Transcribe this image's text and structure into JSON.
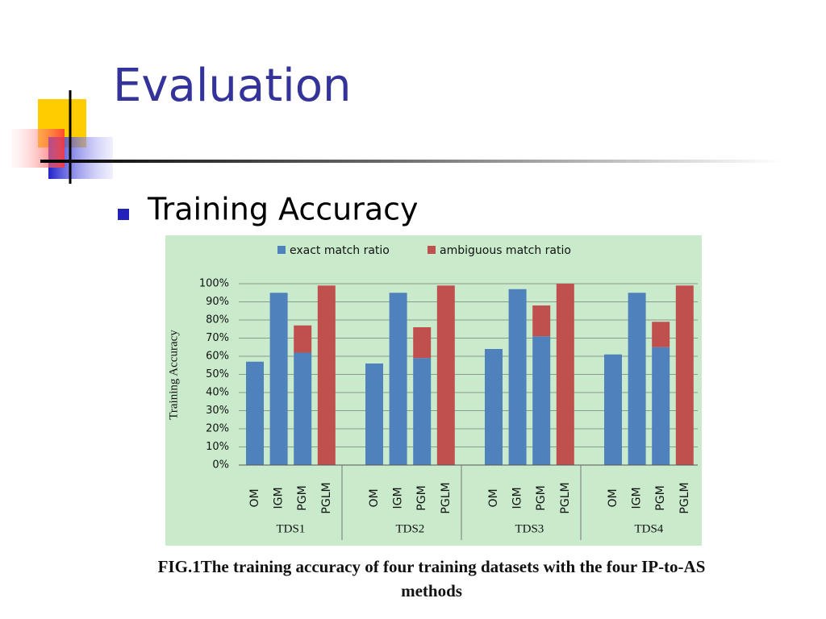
{
  "slide": {
    "title": "Evaluation",
    "bullet": "Training Accuracy",
    "caption": "FIG.1The training accuracy of four training datasets with the four IP-to-AS methods"
  },
  "chart_data": {
    "type": "bar",
    "stacked": true,
    "y_label": "Training Accuracy",
    "categories": [
      "OM",
      "IGM",
      "PGM",
      "PGLM",
      "OM",
      "IGM",
      "PGM",
      "PGLM",
      "OM",
      "IGM",
      "PGM",
      "PGLM",
      "OM",
      "IGM",
      "PGM",
      "PGLM"
    ],
    "groups": [
      "TDS1",
      "TDS2",
      "TDS3",
      "TDS4"
    ],
    "series": [
      {
        "name": "exact match ratio",
        "color": "#4f81bd",
        "values": [
          57,
          95,
          62,
          0,
          56,
          95,
          59,
          0,
          64,
          97,
          71,
          0,
          61,
          95,
          65,
          0
        ]
      },
      {
        "name": "ambiguous match ratio",
        "color": "#c0504d",
        "values": [
          0,
          0,
          15,
          99,
          0,
          0,
          17,
          99,
          0,
          0,
          17,
          100,
          0,
          0,
          14,
          99
        ]
      }
    ],
    "ylim": [
      0,
      100
    ],
    "yticks": [
      {
        "value": 0,
        "label": "0%"
      },
      {
        "value": 10,
        "label": "10%"
      },
      {
        "value": 20,
        "label": "20%"
      },
      {
        "value": 30,
        "label": "30%"
      },
      {
        "value": 40,
        "label": "40%"
      },
      {
        "value": 50,
        "label": "50%"
      },
      {
        "value": 60,
        "label": "60%"
      },
      {
        "value": 70,
        "label": "70%"
      },
      {
        "value": 80,
        "label": "80%"
      },
      {
        "value": 90,
        "label": "90%"
      },
      {
        "value": 100,
        "label": "100%"
      }
    ],
    "grid": true,
    "legend": "top"
  }
}
